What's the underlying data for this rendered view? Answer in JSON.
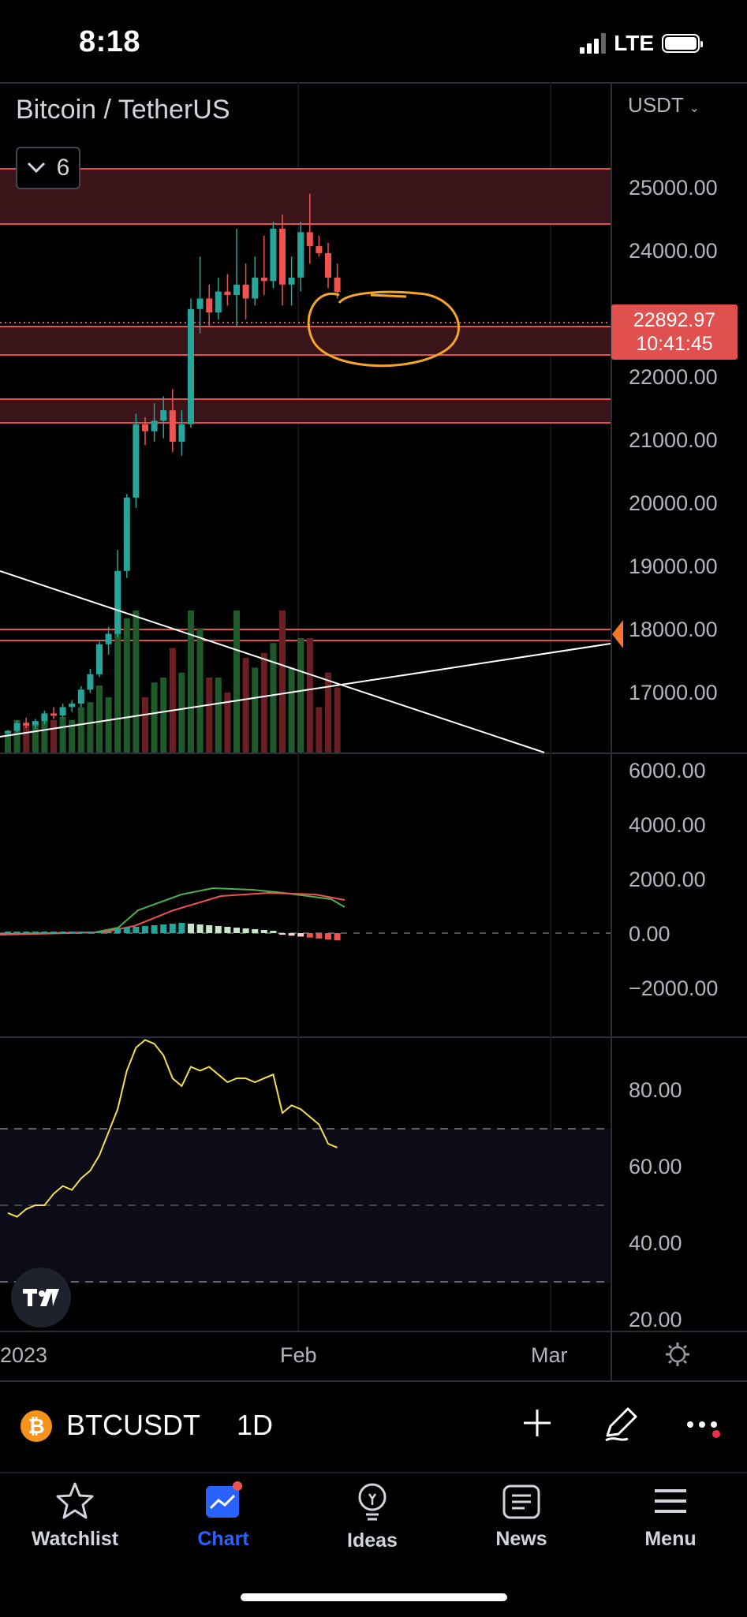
{
  "status_bar": {
    "time": "8:18",
    "network": "LTE"
  },
  "chart": {
    "title": "Bitcoin / TetherUS",
    "indicator_count": "6",
    "currency": "USDT",
    "last_price": "22892.97",
    "countdown": "10:41:45",
    "price_axis": [
      "25000.00",
      "24000.00",
      "22000.00",
      "21000.00",
      "20000.00",
      "19000.00",
      "18000.00",
      "17000.00"
    ],
    "macd_axis": [
      "6000.00",
      "4000.00",
      "2000.00",
      "0.00",
      "−2000.00"
    ],
    "rsi_axis": [
      "80.00",
      "60.00",
      "40.00",
      "20.00"
    ],
    "x_axis": {
      "year": "2023",
      "feb": "Feb",
      "mar": "Mar"
    },
    "colors": {
      "up": "#26a69a",
      "down": "#ef5350",
      "zone": "#e0504f",
      "annotation": "#f5a623",
      "rsi": "#f5e04a"
    }
  },
  "chart_data": {
    "type": "candlestick",
    "title": "Bitcoin / TetherUS",
    "interval": "1D",
    "price_range": [
      16300,
      25900
    ],
    "candles": [
      [
        16600,
        16620,
        16560,
        16610
      ],
      [
        16610,
        16760,
        16590,
        16720
      ],
      [
        16720,
        16800,
        16650,
        16690
      ],
      [
        16690,
        16780,
        16640,
        16750
      ],
      [
        16750,
        16900,
        16700,
        16860
      ],
      [
        16860,
        16950,
        16780,
        16830
      ],
      [
        16830,
        17000,
        16800,
        16950
      ],
      [
        16950,
        17050,
        16880,
        17000
      ],
      [
        17000,
        17250,
        16950,
        17200
      ],
      [
        17200,
        17500,
        17150,
        17420
      ],
      [
        17420,
        17900,
        17380,
        17850
      ],
      [
        17850,
        18100,
        17700,
        18000
      ],
      [
        18000,
        19200,
        17950,
        18900
      ],
      [
        18900,
        20000,
        18800,
        19950
      ],
      [
        19950,
        21150,
        19800,
        21000
      ],
      [
        21000,
        21100,
        20700,
        20900
      ],
      [
        20900,
        21300,
        20750,
        21050
      ],
      [
        21050,
        21400,
        20800,
        21200
      ],
      [
        21200,
        21500,
        20600,
        20750
      ],
      [
        20750,
        21200,
        20550,
        21000
      ],
      [
        21000,
        22800,
        20950,
        22650
      ],
      [
        22650,
        23400,
        22300,
        22800
      ],
      [
        22800,
        23000,
        22400,
        22600
      ],
      [
        22600,
        23100,
        22500,
        22900
      ],
      [
        22900,
        23150,
        22700,
        22850
      ],
      [
        22850,
        23800,
        22400,
        23000
      ],
      [
        23000,
        23300,
        22500,
        22800
      ],
      [
        22800,
        23400,
        22700,
        23100
      ],
      [
        23100,
        23700,
        22850,
        23050
      ],
      [
        23050,
        23900,
        22950,
        23800
      ],
      [
        23800,
        24000,
        22700,
        23000
      ],
      [
        23000,
        23400,
        22700,
        23100
      ],
      [
        23100,
        23900,
        22900,
        23750
      ],
      [
        23750,
        24300,
        23300,
        23550
      ],
      [
        23550,
        23700,
        23400,
        23450
      ],
      [
        23450,
        23600,
        22950,
        23100
      ],
      [
        23100,
        23300,
        22800,
        22892.97
      ]
    ],
    "macd": {
      "yrange": [
        -2500,
        6500
      ]
    },
    "rsi": {
      "yrange": [
        15,
        95
      ],
      "values": [
        45,
        44,
        46,
        47,
        47,
        50,
        52,
        51,
        54,
        56,
        60,
        66,
        72,
        82,
        88,
        90,
        89,
        86,
        80,
        78,
        83,
        82,
        83,
        81,
        79,
        80,
        80,
        79,
        80,
        81,
        71,
        73,
        72,
        70,
        68,
        63,
        62
      ]
    }
  }
}
